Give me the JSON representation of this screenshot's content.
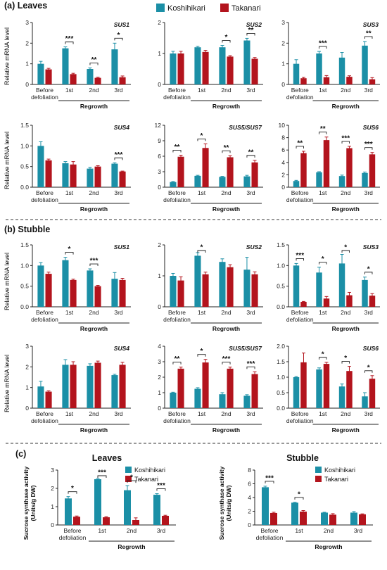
{
  "colors": {
    "koshihikari": "#1b8fa6",
    "takanari": "#b3141d"
  },
  "legend": {
    "series": [
      "Koshihikari",
      "Takanari"
    ]
  },
  "sections": {
    "a": "(a) Leaves",
    "b": "(b) Stubble",
    "c": "(c)"
  },
  "categories": [
    "Before defoliation",
    "1st",
    "2nd",
    "3rd"
  ],
  "group_label": "Regrowth",
  "y_labels": {
    "mrna": "Relative mRNA level",
    "activity": "Sucrose synthase activity (Units/g DW)"
  },
  "chart_data": [
    {
      "id": "a-sus1",
      "type": "bar",
      "title": "SUS1",
      "ylim": [
        0,
        3
      ],
      "yticks": [
        0,
        1,
        2,
        3
      ],
      "series": [
        {
          "name": "Koshihikari",
          "values": [
            1.0,
            1.75,
            0.75,
            1.7
          ],
          "errors": [
            0.12,
            0.07,
            0.05,
            0.3
          ]
        },
        {
          "name": "Takanari",
          "values": [
            0.73,
            0.5,
            0.32,
            0.35
          ],
          "errors": [
            0.05,
            0.04,
            0.03,
            0.06
          ]
        }
      ],
      "stars": [
        "",
        "***",
        "**",
        "*"
      ]
    },
    {
      "id": "a-sus2",
      "type": "bar",
      "title": "SUS2",
      "ylim": [
        0,
        2
      ],
      "yticks": [
        0,
        1,
        2
      ],
      "series": [
        {
          "name": "Koshihikari",
          "values": [
            1.0,
            1.2,
            1.2,
            1.42
          ],
          "errors": [
            0.07,
            0.03,
            0.06,
            0.07
          ]
        },
        {
          "name": "Takanari",
          "values": [
            1.0,
            1.05,
            0.9,
            0.83
          ],
          "errors": [
            0.07,
            0.05,
            0.03,
            0.04
          ]
        }
      ],
      "stars": [
        "",
        "",
        "*",
        "**"
      ]
    },
    {
      "id": "a-sus3",
      "type": "bar",
      "title": "SUS3",
      "ylim": [
        0,
        3
      ],
      "yticks": [
        0,
        1,
        2,
        3
      ],
      "series": [
        {
          "name": "Koshihikari",
          "values": [
            1.0,
            1.5,
            1.3,
            1.88
          ],
          "errors": [
            0.2,
            0.1,
            0.25,
            0.2
          ]
        },
        {
          "name": "Takanari",
          "values": [
            0.3,
            0.35,
            0.37,
            0.25
          ],
          "errors": [
            0.04,
            0.08,
            0.05,
            0.08
          ]
        }
      ],
      "stars": [
        "",
        "***",
        "",
        "**"
      ]
    },
    {
      "id": "a-sus4",
      "type": "bar",
      "title": "SUS4",
      "ylim": [
        0,
        1.5
      ],
      "yticks": [
        0,
        0.5,
        1.0,
        1.5
      ],
      "series": [
        {
          "name": "Koshihikari",
          "values": [
            1.0,
            0.58,
            0.45,
            0.57
          ],
          "errors": [
            0.1,
            0.04,
            0.03,
            0.02
          ]
        },
        {
          "name": "Takanari",
          "values": [
            0.65,
            0.55,
            0.5,
            0.38
          ],
          "errors": [
            0.03,
            0.07,
            0.02,
            0.01
          ]
        }
      ],
      "stars": [
        "",
        "",
        "",
        "***"
      ]
    },
    {
      "id": "a-sus5",
      "type": "bar",
      "title": "SUS5/SUS7",
      "ylim": [
        0,
        12
      ],
      "yticks": [
        0,
        3,
        6,
        9,
        12
      ],
      "series": [
        {
          "name": "Koshihikari",
          "values": [
            1.0,
            2.2,
            2.0,
            2.1
          ],
          "errors": [
            0.1,
            0.1,
            0.1,
            0.2
          ]
        },
        {
          "name": "Takanari",
          "values": [
            5.9,
            7.6,
            5.8,
            4.8
          ],
          "errors": [
            0.3,
            0.8,
            0.3,
            0.4
          ]
        }
      ],
      "stars": [
        "**",
        "*",
        "**",
        "**"
      ]
    },
    {
      "id": "a-sus6",
      "type": "bar",
      "title": "SUS6",
      "ylim": [
        0,
        10
      ],
      "yticks": [
        0,
        2,
        4,
        6,
        8,
        10
      ],
      "series": [
        {
          "name": "Koshihikari",
          "values": [
            1.0,
            2.4,
            1.8,
            2.3
          ],
          "errors": [
            0.1,
            0.1,
            0.15,
            0.15
          ]
        },
        {
          "name": "Takanari",
          "values": [
            5.5,
            7.6,
            6.3,
            5.3
          ],
          "errors": [
            0.3,
            0.5,
            0.3,
            0.3
          ]
        }
      ],
      "stars": [
        "**",
        "**",
        "***",
        "***"
      ]
    },
    {
      "id": "b-sus1",
      "type": "bar",
      "title": "SUS1",
      "ylim": [
        0,
        1.5
      ],
      "yticks": [
        0,
        0.5,
        1.0,
        1.5
      ],
      "series": [
        {
          "name": "Koshihikari",
          "values": [
            1.0,
            1.13,
            0.88,
            0.68
          ],
          "errors": [
            0.07,
            0.07,
            0.04,
            0.15
          ]
        },
        {
          "name": "Takanari",
          "values": [
            0.8,
            0.65,
            0.5,
            0.65
          ],
          "errors": [
            0.04,
            0.02,
            0.02,
            0.04
          ]
        }
      ],
      "stars": [
        "",
        "*",
        "***",
        ""
      ]
    },
    {
      "id": "b-sus2",
      "type": "bar",
      "title": "SUS2",
      "ylim": [
        0,
        2
      ],
      "yticks": [
        0,
        1,
        2
      ],
      "series": [
        {
          "name": "Koshihikari",
          "values": [
            1.0,
            1.65,
            1.45,
            1.2
          ],
          "errors": [
            0.08,
            0.1,
            0.1,
            0.4
          ]
        },
        {
          "name": "Takanari",
          "values": [
            0.85,
            1.05,
            1.28,
            1.05
          ],
          "errors": [
            0.12,
            0.07,
            0.08,
            0.08
          ]
        }
      ],
      "stars": [
        "",
        "*",
        "",
        ""
      ]
    },
    {
      "id": "b-sus3",
      "type": "bar",
      "title": "SUS3",
      "ylim": [
        0,
        1.5
      ],
      "yticks": [
        0,
        0.5,
        1.0,
        1.5
      ],
      "series": [
        {
          "name": "Koshihikari",
          "values": [
            1.0,
            0.83,
            1.05,
            0.65
          ],
          "errors": [
            0.05,
            0.13,
            0.22,
            0.07
          ]
        },
        {
          "name": "Takanari",
          "values": [
            0.12,
            0.2,
            0.28,
            0.27
          ],
          "errors": [
            0.01,
            0.05,
            0.07,
            0.05
          ]
        }
      ],
      "stars": [
        "***",
        "*",
        "*",
        "*"
      ]
    },
    {
      "id": "b-sus4",
      "type": "bar",
      "title": "SUS4",
      "ylim": [
        0,
        3
      ],
      "yticks": [
        0,
        1,
        2,
        3
      ],
      "series": [
        {
          "name": "Koshihikari",
          "values": [
            1.05,
            2.1,
            2.05,
            1.6
          ],
          "errors": [
            0.25,
            0.25,
            0.1,
            0.04
          ]
        },
        {
          "name": "Takanari",
          "values": [
            0.8,
            2.1,
            2.2,
            2.1
          ],
          "errors": [
            0.04,
            0.15,
            0.08,
            0.12
          ]
        }
      ],
      "stars": [
        "",
        "",
        "",
        ""
      ]
    },
    {
      "id": "b-sus5",
      "type": "bar",
      "title": "SUS5/SUS7",
      "ylim": [
        0,
        4
      ],
      "yticks": [
        0,
        1,
        2,
        3,
        4
      ],
      "series": [
        {
          "name": "Koshihikari",
          "values": [
            1.0,
            1.25,
            0.9,
            0.8
          ],
          "errors": [
            0.03,
            0.07,
            0.1,
            0.07
          ]
        },
        {
          "name": "Takanari",
          "values": [
            2.55,
            2.95,
            2.55,
            2.2
          ],
          "errors": [
            0.1,
            0.2,
            0.1,
            0.15
          ]
        }
      ],
      "stars": [
        "**",
        "*",
        "***",
        "***"
      ]
    },
    {
      "id": "b-sus6",
      "type": "bar",
      "title": "SUS6",
      "ylim": [
        0,
        2.0
      ],
      "yticks": [
        0,
        0.5,
        1.0,
        1.5,
        2.0
      ],
      "series": [
        {
          "name": "Koshihikari",
          "values": [
            1.0,
            1.25,
            0.7,
            0.38
          ],
          "errors": [
            0.02,
            0.05,
            0.08,
            0.12
          ]
        },
        {
          "name": "Takanari",
          "values": [
            1.48,
            1.43,
            1.2,
            0.95
          ],
          "errors": [
            0.3,
            0.05,
            0.15,
            0.1
          ]
        }
      ],
      "stars": [
        "",
        "*",
        "*",
        "*"
      ]
    },
    {
      "id": "c-leaves",
      "type": "bar",
      "title": "Leaves",
      "ylim": [
        0,
        3
      ],
      "yticks": [
        0,
        1,
        2,
        3
      ],
      "series": [
        {
          "name": "Koshihikari",
          "values": [
            1.45,
            2.5,
            1.9,
            1.65
          ],
          "errors": [
            0.1,
            0.04,
            0.25,
            0.06
          ]
        },
        {
          "name": "Takanari",
          "values": [
            0.45,
            0.42,
            0.27,
            0.5
          ],
          "errors": [
            0.04,
            0.03,
            0.12,
            0.03
          ]
        }
      ],
      "stars": [
        "*",
        "***",
        "*",
        "***"
      ]
    },
    {
      "id": "c-stubble",
      "type": "bar",
      "title": "Stubble",
      "ylim": [
        0,
        8
      ],
      "yticks": [
        0,
        2,
        4,
        6,
        8
      ],
      "series": [
        {
          "name": "Koshihikari",
          "values": [
            5.5,
            3.25,
            1.8,
            1.8
          ],
          "errors": [
            0.15,
            0.05,
            0.05,
            0.15
          ]
        },
        {
          "name": "Takanari",
          "values": [
            1.75,
            1.95,
            1.5,
            1.55
          ],
          "errors": [
            0.1,
            0.15,
            0.15,
            0.07
          ]
        }
      ],
      "stars": [
        "***",
        "*",
        "",
        ""
      ]
    }
  ]
}
